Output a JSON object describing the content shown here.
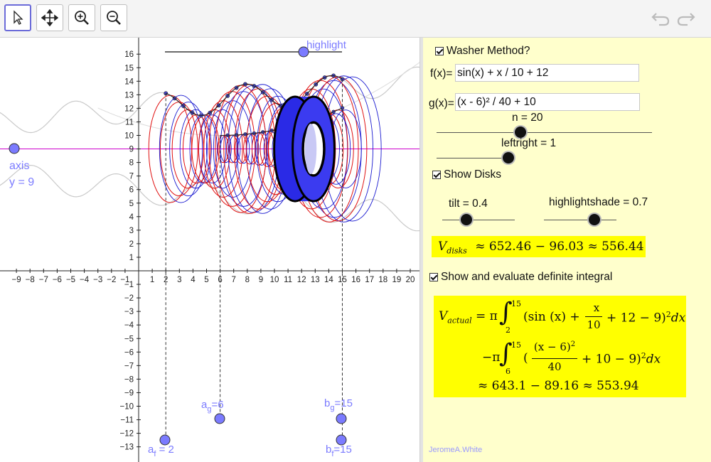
{
  "toolbar": {
    "tools": [
      "move-tool",
      "pan-tool",
      "zoom-in-tool",
      "zoom-out-tool"
    ],
    "undo_icon": "undo-icon",
    "redo_icon": "redo-icon"
  },
  "graph": {
    "x_ticks": [
      "−9",
      "−8",
      "−7",
      "−6",
      "−5",
      "−4",
      "−3",
      "−2",
      "−1",
      "1",
      "2",
      "3",
      "4",
      "5",
      "6",
      "7",
      "8",
      "9",
      "10",
      "11",
      "12",
      "13",
      "14",
      "15",
      "16",
      "17",
      "18",
      "19",
      "20"
    ],
    "y_ticks": [
      "16",
      "15",
      "14",
      "13",
      "12",
      "11",
      "10",
      "9",
      "8",
      "7",
      "6",
      "5",
      "4",
      "3",
      "2",
      "1",
      "−1",
      "−2",
      "−3",
      "−4",
      "−5",
      "−6",
      "−7",
      "−8",
      "−9",
      "−10",
      "−11",
      "−12",
      "−13"
    ],
    "axis_label": "axis",
    "axis_eq": "y = 9",
    "highlight_label": "highlight",
    "af_label": "a",
    "af_sub": "f",
    "af_val": " = 2",
    "ag_label": "a",
    "ag_sub": "g",
    "ag_val": "=6",
    "bg_label": "b",
    "bg_sub": "g",
    "bg_val": "=15",
    "bf_label": "b",
    "bf_sub": "f",
    "bf_val": "=15",
    "colors": {
      "outer": "#e01010",
      "inner": "#1a1ad0",
      "point": "#7b7bff",
      "axis_line": "#cc00cc"
    }
  },
  "panel": {
    "washer_label": "Washer Method?",
    "f_label": "f(x)=",
    "f_value": "sin(x) + x / 10 + 12",
    "g_label": "g(x)=",
    "g_value": "(x - 6)² / 40 + 10",
    "n_label": "n = 20",
    "leftright_label": "leftright = 1",
    "show_disks_label": "Show Disks",
    "tilt_label": "tilt = 0.4",
    "highlightshade_label": "highlightshade = 0.7",
    "vdisks_V": "V",
    "vdisks_sub": "disks",
    "vdisks_expr": "≈  652.46 − 96.03  ≈  556.44",
    "show_integral_label": "Show and evaluate definite integral",
    "vactual_V": "V",
    "vactual_sub": "actual",
    "int1_prefix": "= π",
    "int1_upper": "15",
    "int1_lower": "2",
    "int1_body_a": "(sin (x) +",
    "int1_frac_num": "x",
    "int1_frac_den": "10",
    "int1_body_b": "+ 12 − 9)",
    "int1_sq": "2",
    "int1_dx": "dx",
    "int2_prefix": "−π",
    "int2_upper": "15",
    "int2_lower": "6",
    "int2_body_a": "(",
    "int2_frac_num": "(x − 6)",
    "int2_frac_num_sq": "2",
    "int2_frac_den": "40",
    "int2_body_b": "+ 10 − 9)",
    "int2_sq": "2",
    "int2_dx": "dx",
    "result": "≈ 643.1 − 89.16 ≈ 553.94",
    "credit": "JeromeA.White"
  }
}
